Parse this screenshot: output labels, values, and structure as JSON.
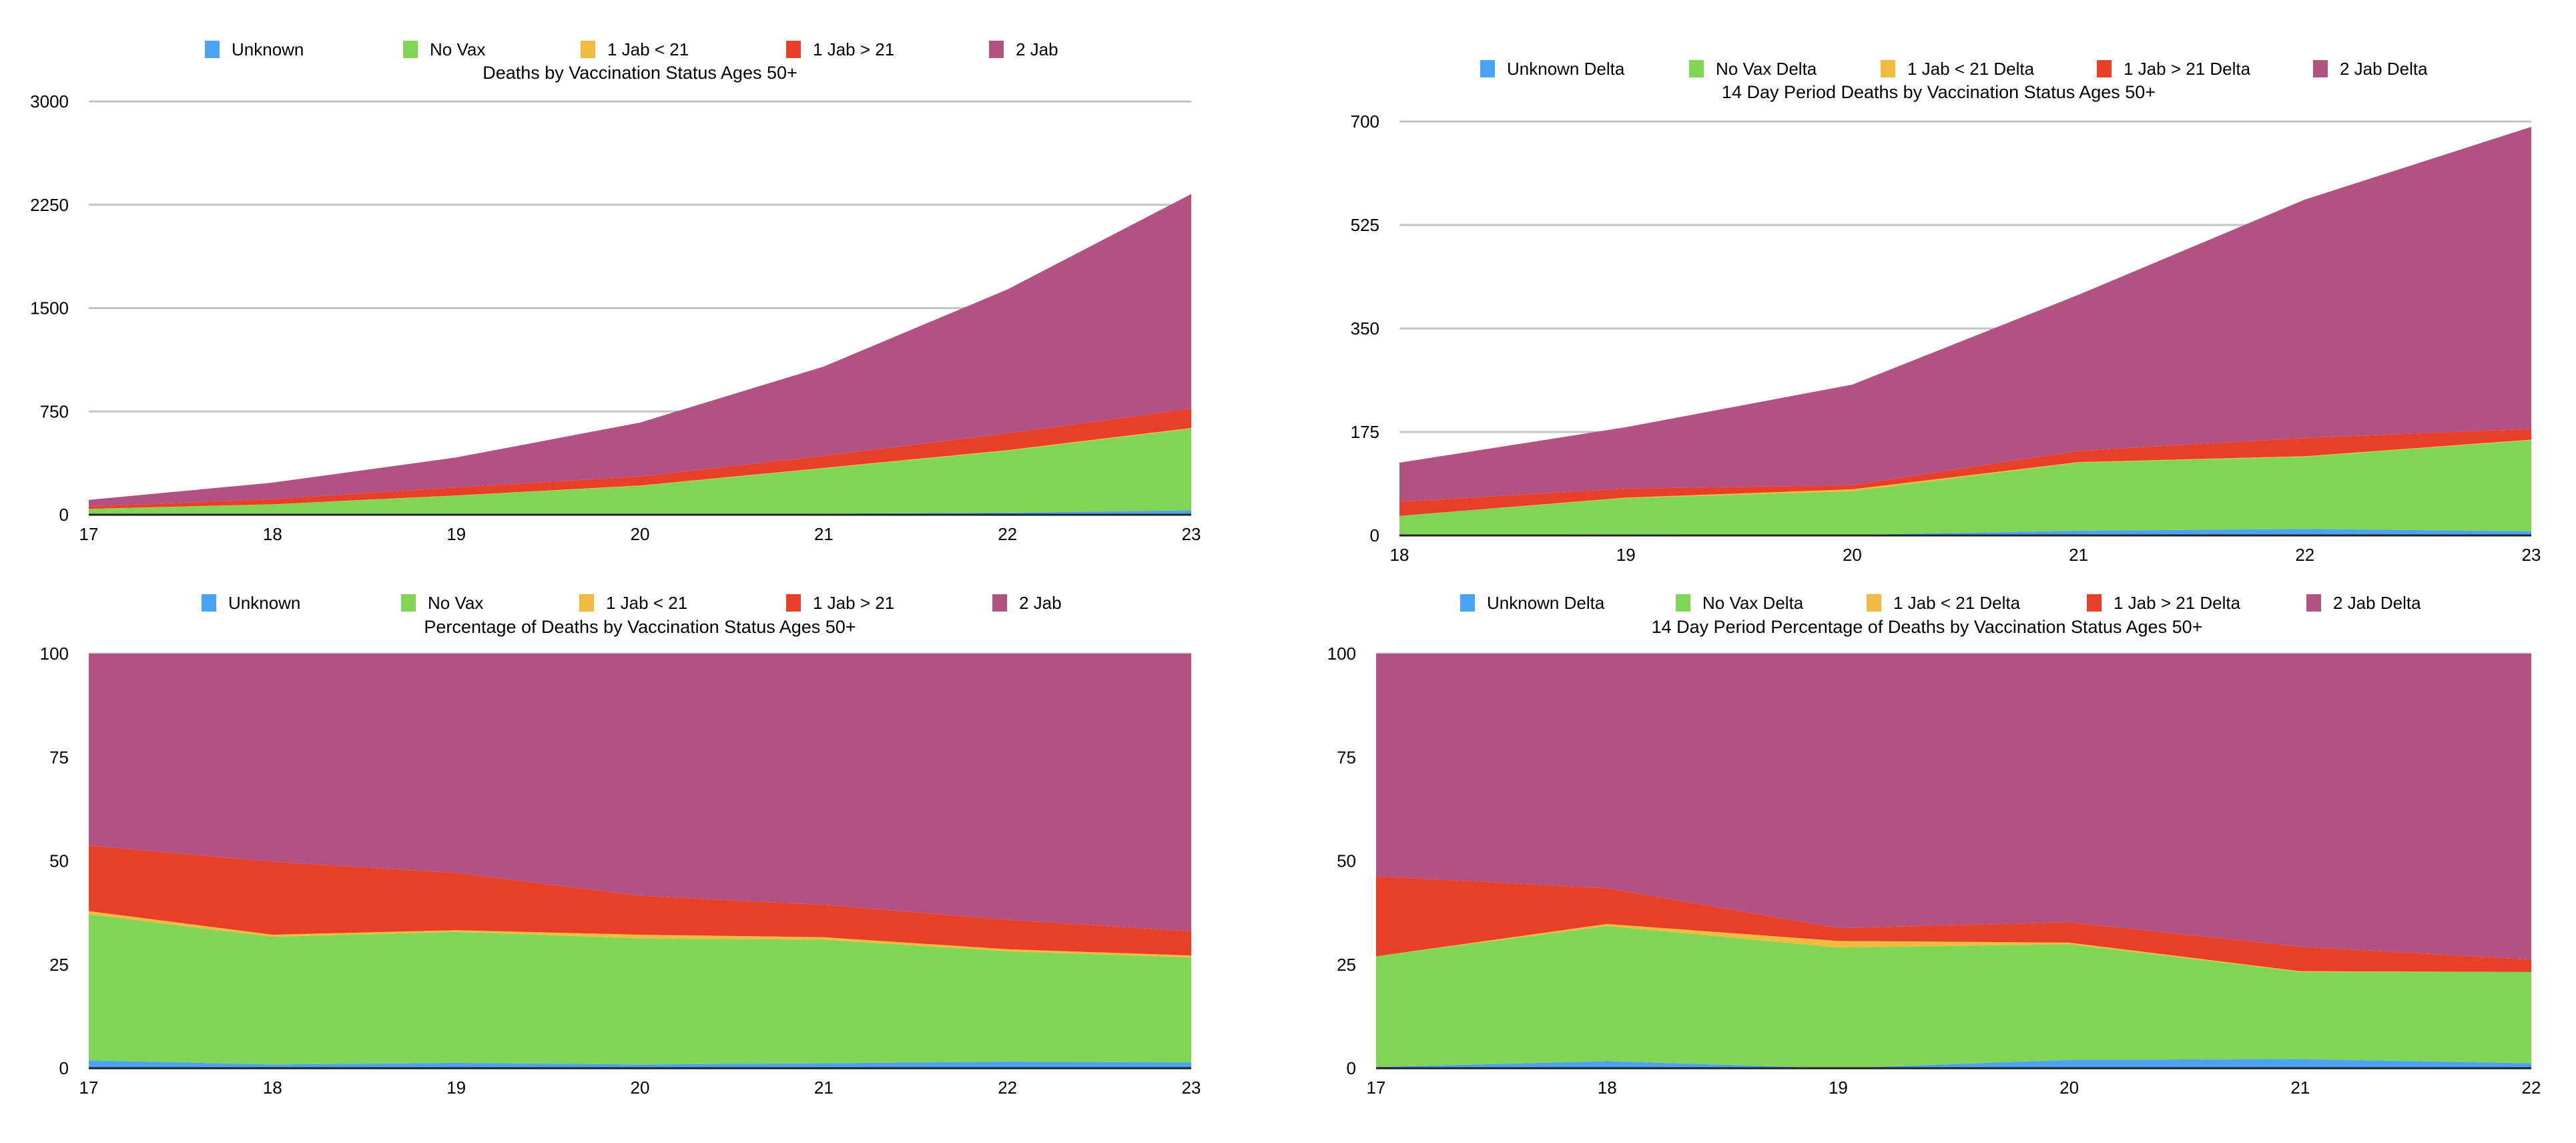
{
  "colors": {
    "unknown": "#4aa3f5",
    "no_vax": "#82d455",
    "jab1_lt21": "#f0bb40",
    "jab1_gt21": "#e83f28",
    "jab2": "#b25283",
    "grid": "#c4c4c4"
  },
  "chart_data": [
    {
      "id": "deaths",
      "type": "area",
      "stacked": true,
      "title": "Deaths by Vaccination Status Ages 50+",
      "xlabel": "",
      "ylabel": "",
      "x": [
        "17",
        "18",
        "19",
        "20",
        "21",
        "22",
        "23"
      ],
      "yticks": [
        "0",
        "750",
        "1500",
        "2250",
        "3000"
      ],
      "ylim": [
        0,
        3000
      ],
      "grid": true,
      "legend_position": "top",
      "series": [
        {
          "name": "Unknown",
          "color_key": "unknown",
          "values": [
            2,
            2,
            2,
            3,
            8,
            15,
            32
          ]
        },
        {
          "name": "No Vax",
          "color_key": "no_vax",
          "values": [
            40,
            73,
            136,
            206,
            328,
            449,
            592
          ]
        },
        {
          "name": "1 Jab < 21",
          "color_key": "jab1_lt21",
          "values": [
            1,
            1,
            2,
            3,
            4,
            5,
            6
          ]
        },
        {
          "name": "1 Jab > 21",
          "color_key": "jab1_gt21",
          "values": [
            17,
            37,
            58,
            66,
            88,
            122,
            140
          ]
        },
        {
          "name": "2 Jab",
          "color_key": "jab2",
          "values": [
            48,
            120,
            218,
            391,
            648,
            1045,
            1558
          ]
        }
      ]
    },
    {
      "id": "deaths14",
      "type": "area",
      "stacked": true,
      "title": "14 Day Period Deaths by Vaccination Status Ages 50+",
      "xlabel": "",
      "ylabel": "",
      "x": [
        "18",
        "19",
        "20",
        "21",
        "22",
        "23"
      ],
      "yticks": [
        "0",
        "175",
        "350",
        "525",
        "700"
      ],
      "ylim": [
        0,
        700
      ],
      "grid": true,
      "legend_position": "top",
      "series": [
        {
          "name": "Unknown Delta",
          "color_key": "unknown",
          "values": [
            1,
            2,
            1,
            8,
            11,
            7
          ]
        },
        {
          "name": "No Vax Delta",
          "color_key": "no_vax",
          "values": [
            32,
            61,
            74,
            115,
            122,
            154
          ]
        },
        {
          "name": "1 Jab < 21 Delta",
          "color_key": "jab1_lt21",
          "values": [
            0,
            1,
            3,
            1,
            1,
            1
          ]
        },
        {
          "name": "1 Jab > 21 Delta",
          "color_key": "jab1_gt21",
          "values": [
            24,
            15,
            7,
            19,
            31,
            18
          ]
        },
        {
          "name": "2 Jab Delta",
          "color_key": "jab2",
          "values": [
            66,
            104,
            170,
            264,
            403,
            511
          ]
        }
      ]
    },
    {
      "id": "pct",
      "type": "area",
      "stacked": true,
      "title": "Percentage of Deaths by Vaccination Status Ages 50+",
      "xlabel": "",
      "ylabel": "",
      "x": [
        "17",
        "18",
        "19",
        "20",
        "21",
        "22",
        "23"
      ],
      "yticks": [
        "0",
        "25",
        "50",
        "75",
        "100"
      ],
      "ylim": [
        0,
        100
      ],
      "grid": true,
      "legend_position": "top",
      "series": [
        {
          "name": "Unknown",
          "color_key": "unknown",
          "values": [
            1.9,
            0.9,
            1.3,
            0.9,
            1.2,
            1.6,
            1.4
          ]
        },
        {
          "name": "No Vax",
          "color_key": "no_vax",
          "values": [
            35.2,
            30.8,
            31.6,
            30.4,
            29.8,
            26.6,
            25.3
          ]
        },
        {
          "name": "1 Jab < 21",
          "color_key": "jab1_lt21",
          "values": [
            0.8,
            0.5,
            0.4,
            0.9,
            0.6,
            0.5,
            0.5
          ]
        },
        {
          "name": "1 Jab > 21",
          "color_key": "jab1_gt21",
          "values": [
            15.8,
            17.6,
            13.8,
            9.4,
            7.8,
            7.1,
            5.8
          ]
        },
        {
          "name": "2 Jab",
          "color_key": "jab2",
          "values": [
            46.3,
            50.2,
            52.9,
            58.4,
            60.6,
            64.2,
            67.0
          ]
        }
      ]
    },
    {
      "id": "pct14",
      "type": "area",
      "stacked": true,
      "title": "14 Day Period Percentage of Deaths by Vaccination Status Ages 50+",
      "xlabel": "",
      "ylabel": "",
      "x": [
        "17",
        "18",
        "19",
        "20",
        "21",
        "22"
      ],
      "yticks": [
        "0",
        "25",
        "50",
        "75",
        "100"
      ],
      "ylim": [
        0,
        100
      ],
      "grid": true,
      "legend_position": "top",
      "series": [
        {
          "name": "Unknown Delta",
          "color_key": "unknown",
          "values": [
            0.3,
            1.7,
            0.0,
            2.0,
            2.2,
            1.2
          ]
        },
        {
          "name": "No Vax Delta",
          "color_key": "no_vax",
          "values": [
            26.7,
            32.6,
            29.1,
            27.9,
            21.0,
            22.0
          ]
        },
        {
          "name": "1 Jab < 21 Delta",
          "color_key": "jab1_lt21",
          "values": [
            0.0,
            0.5,
            1.6,
            0.4,
            0.2,
            0.0
          ]
        },
        {
          "name": "1 Jab > 21 Delta",
          "color_key": "jab1_gt21",
          "values": [
            19.3,
            8.6,
            3.1,
            4.9,
            5.9,
            3.0
          ]
        },
        {
          "name": "2 Jab Delta",
          "color_key": "jab2",
          "values": [
            53.7,
            56.6,
            66.2,
            64.8,
            70.7,
            73.8
          ]
        }
      ]
    }
  ]
}
